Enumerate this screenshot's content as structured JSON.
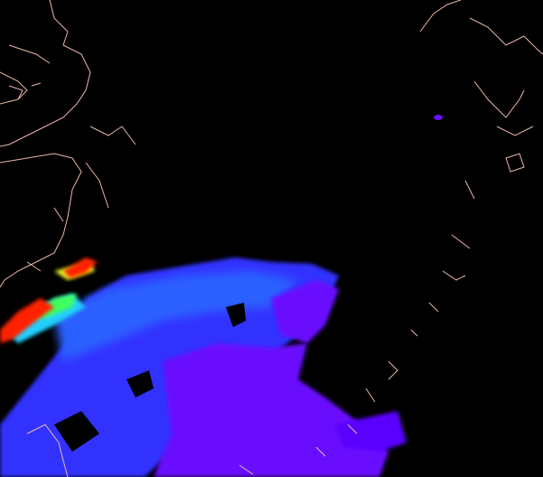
{
  "map": {
    "background_color": "#000000",
    "coastline_color": "#e8b8a8",
    "data_colors": {
      "low": "#7a00ff",
      "medium_low": "#3a2cff",
      "medium": "#2c6cff",
      "cyan": "#20d0ff",
      "green": "#40ff60",
      "yellow": "#f0ff20",
      "high": "#ff2000"
    }
  }
}
